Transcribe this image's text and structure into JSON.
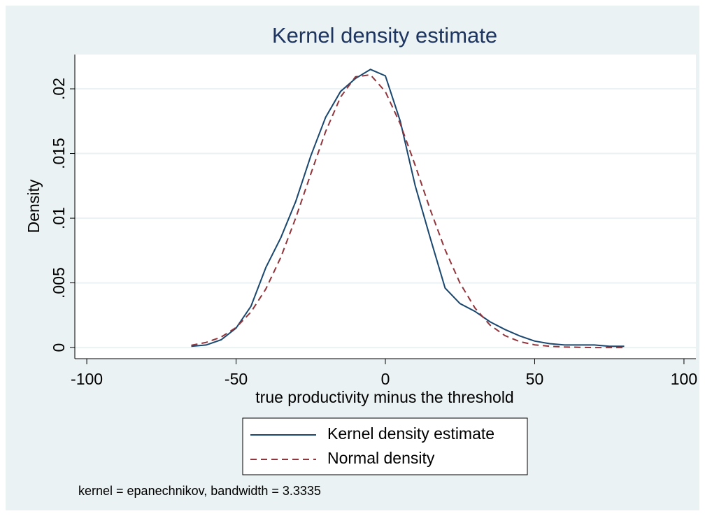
{
  "chart_data": {
    "type": "line",
    "title": "Kernel density estimate",
    "x_label": "true productivity minus the threshold",
    "y_label": "Density",
    "note": "kernel = epanechnikov, bandwidth = 3.3335",
    "x": [
      -65,
      -60,
      -55,
      -50,
      -45,
      -40,
      -35,
      -30,
      -25,
      -20,
      -15,
      -10,
      -5,
      0,
      5,
      10,
      15,
      20,
      25,
      30,
      35,
      40,
      45,
      50,
      55,
      60,
      65,
      70,
      75,
      80
    ],
    "series": [
      {
        "name": "Kernel density estimate",
        "color": "#1a476f",
        "dash": "none",
        "values": [
          0.0001,
          0.0002,
          0.0006,
          0.0015,
          0.0032,
          0.0062,
          0.0085,
          0.0113,
          0.0148,
          0.0178,
          0.0198,
          0.0208,
          0.0215,
          0.021,
          0.0175,
          0.0125,
          0.0085,
          0.0046,
          0.0034,
          0.0028,
          0.002,
          0.0014,
          0.0009,
          0.0005,
          0.0003,
          0.0002,
          0.0002,
          0.0002,
          0.0001,
          0.0001
        ]
      },
      {
        "name": "Normal density",
        "color": "#90353b",
        "dash": "dashed",
        "values": [
          0.00018,
          0.0004,
          0.00081,
          0.00155,
          0.00275,
          0.00454,
          0.00699,
          0.01003,
          0.01341,
          0.0167,
          0.01937,
          0.02093,
          0.02108,
          0.01978,
          0.01729,
          0.01408,
          0.01069,
          0.00756,
          0.00498,
          0.00306,
          0.00175,
          0.00093,
          0.00046,
          0.00021,
          0.0001,
          4e-05,
          2e-05,
          0,
          0,
          0
        ]
      }
    ],
    "xlim": [
      -104,
      104
    ],
    "ylim": [
      -0.00086,
      0.02265
    ],
    "xticks": [
      -100,
      -50,
      0,
      50,
      100
    ],
    "yticks": [
      0,
      {
        "value": 0.005,
        "label": ".005"
      },
      {
        "value": 0.01,
        "label": ".01"
      },
      {
        "value": 0.015,
        "label": ".015"
      },
      {
        "value": 0.02,
        "label": ".02"
      }
    ],
    "grid": true,
    "legend": "bottom"
  }
}
